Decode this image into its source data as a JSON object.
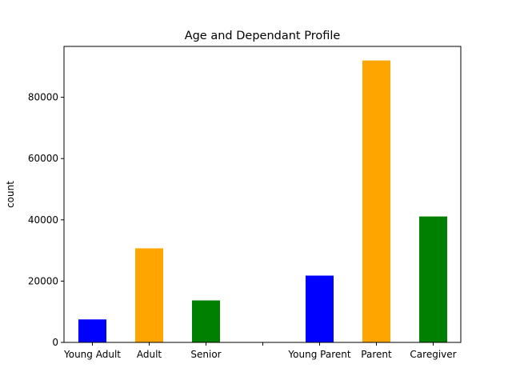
{
  "chart_data": {
    "type": "bar",
    "title": "Age and Dependant Profile",
    "xlabel": "",
    "ylabel": "count",
    "categories": [
      "Young Adult",
      "Adult",
      "Senior",
      "",
      "Young Parent",
      "Parent",
      "Caregiver"
    ],
    "values": [
      7500,
      30700,
      13700,
      0,
      21800,
      92000,
      41100
    ],
    "colors": [
      "#0000ff",
      "#ffa500",
      "#008000",
      "#ffffff",
      "#0000ff",
      "#ffa500",
      "#008000"
    ],
    "ylim": [
      0,
      96600
    ],
    "yticks": [
      0,
      20000,
      40000,
      60000,
      80000
    ],
    "ytick_labels": [
      "0",
      "20000",
      "40000",
      "60000",
      "80000"
    ],
    "grid": false,
    "legend": "none"
  }
}
